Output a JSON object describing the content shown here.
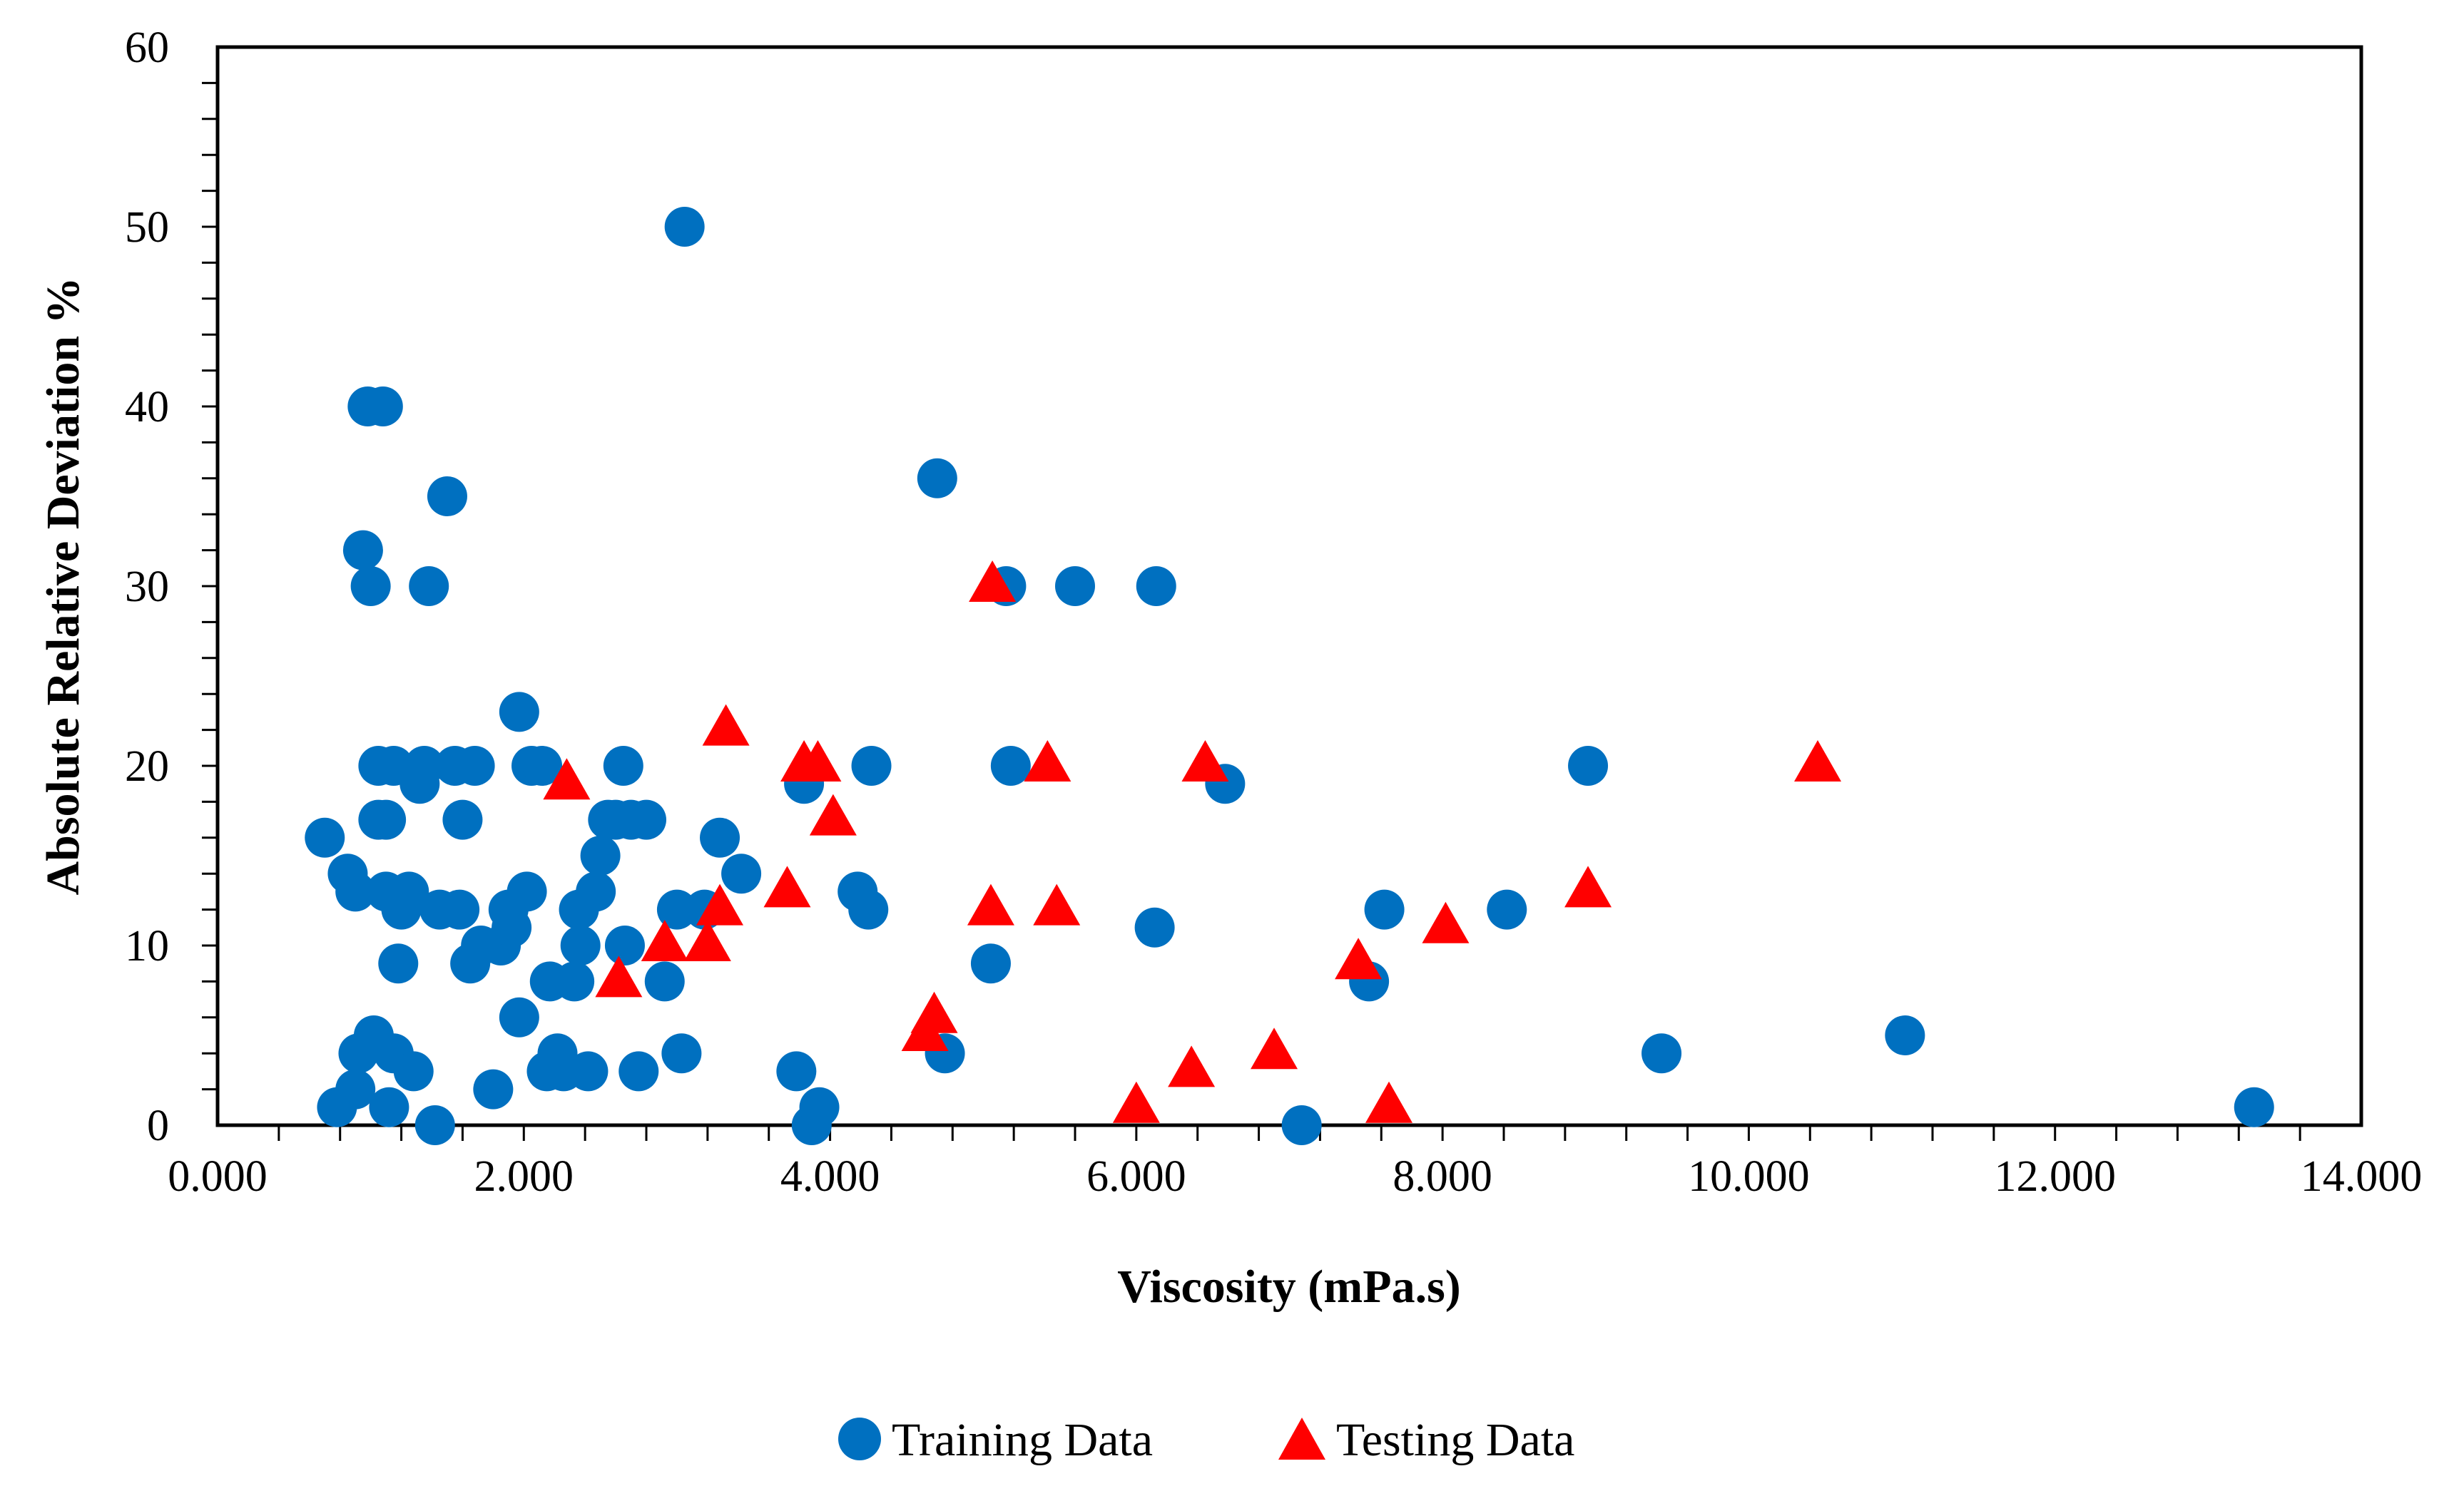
{
  "colors": {
    "training": "#0070C0",
    "testing": "#FF0000",
    "axis": "#000000",
    "background": "#FFFFFF"
  },
  "chart_data": {
    "type": "scatter",
    "title": "",
    "xlabel": "Viscosity (mPa.s)",
    "ylabel": "Absolute Relative Deviation %",
    "xlim": [
      0,
      14
    ],
    "ylim": [
      0,
      60
    ],
    "x_ticks": [
      0,
      2,
      4,
      6,
      8,
      10,
      12,
      14
    ],
    "x_tick_labels": [
      "0.000",
      "2.000",
      "4.000",
      "6.000",
      "8.000",
      "10.000",
      "12.000",
      "14.000"
    ],
    "y_ticks": [
      0,
      10,
      20,
      30,
      40,
      50,
      60
    ],
    "y_tick_labels": [
      "0",
      "10",
      "20",
      "30",
      "40",
      "50",
      "60"
    ],
    "x_minor_step": 0.4,
    "y_minor_step": 2,
    "grid": false,
    "legend_position": "bottom-center",
    "series": [
      {
        "name": "Training Data",
        "marker": "circle",
        "points": [
          [
            0.7,
            16
          ],
          [
            0.78,
            1
          ],
          [
            0.85,
            14
          ],
          [
            0.9,
            2
          ],
          [
            0.9,
            13
          ],
          [
            0.92,
            4
          ],
          [
            0.95,
            32
          ],
          [
            0.98,
            40
          ],
          [
            1.0,
            30
          ],
          [
            1.02,
            5
          ],
          [
            1.05,
            20
          ],
          [
            1.05,
            17
          ],
          [
            1.08,
            40
          ],
          [
            1.1,
            17
          ],
          [
            1.1,
            13
          ],
          [
            1.12,
            1
          ],
          [
            1.15,
            20
          ],
          [
            1.15,
            4
          ],
          [
            1.18,
            9
          ],
          [
            1.2,
            12
          ],
          [
            1.25,
            13
          ],
          [
            1.28,
            3
          ],
          [
            1.32,
            19
          ],
          [
            1.35,
            20
          ],
          [
            1.38,
            30
          ],
          [
            1.42,
            0
          ],
          [
            1.45,
            12
          ],
          [
            1.5,
            35
          ],
          [
            1.55,
            20
          ],
          [
            1.58,
            12
          ],
          [
            1.6,
            17
          ],
          [
            1.65,
            9
          ],
          [
            1.68,
            20
          ],
          [
            1.72,
            10
          ],
          [
            1.8,
            2
          ],
          [
            1.85,
            10
          ],
          [
            1.9,
            12
          ],
          [
            1.92,
            11
          ],
          [
            1.97,
            6
          ],
          [
            1.97,
            23
          ],
          [
            2.02,
            13
          ],
          [
            2.05,
            20
          ],
          [
            2.12,
            20
          ],
          [
            2.15,
            3
          ],
          [
            2.17,
            8
          ],
          [
            2.22,
            4
          ],
          [
            2.26,
            3
          ],
          [
            2.33,
            8
          ],
          [
            2.36,
            12
          ],
          [
            2.37,
            10
          ],
          [
            2.42,
            3
          ],
          [
            2.47,
            13
          ],
          [
            2.5,
            15
          ],
          [
            2.55,
            17
          ],
          [
            2.6,
            17
          ],
          [
            2.65,
            20
          ],
          [
            2.66,
            10
          ],
          [
            2.7,
            17
          ],
          [
            2.75,
            3
          ],
          [
            2.8,
            17
          ],
          [
            2.92,
            8
          ],
          [
            3.0,
            12
          ],
          [
            3.03,
            4
          ],
          [
            3.05,
            50
          ],
          [
            3.18,
            12
          ],
          [
            3.28,
            16
          ],
          [
            3.42,
            14
          ],
          [
            3.78,
            3
          ],
          [
            3.83,
            19
          ],
          [
            3.88,
            0
          ],
          [
            3.93,
            1
          ],
          [
            4.18,
            13
          ],
          [
            4.25,
            12
          ],
          [
            4.27,
            20
          ],
          [
            4.7,
            36
          ],
          [
            4.75,
            4
          ],
          [
            5.05,
            9
          ],
          [
            5.15,
            30
          ],
          [
            5.18,
            20
          ],
          [
            5.6,
            30
          ],
          [
            6.12,
            11
          ],
          [
            6.13,
            30
          ],
          [
            6.58,
            19
          ],
          [
            7.08,
            0
          ],
          [
            7.52,
            8
          ],
          [
            7.62,
            12
          ],
          [
            8.42,
            12
          ],
          [
            8.95,
            20
          ],
          [
            9.43,
            4
          ],
          [
            11.02,
            5
          ],
          [
            13.3,
            1
          ]
        ]
      },
      {
        "name": "Testing Data",
        "marker": "triangle",
        "points": [
          [
            2.28,
            19
          ],
          [
            2.62,
            8
          ],
          [
            2.92,
            10
          ],
          [
            3.2,
            10
          ],
          [
            3.28,
            12
          ],
          [
            3.32,
            22
          ],
          [
            3.72,
            13
          ],
          [
            3.83,
            20
          ],
          [
            3.92,
            20
          ],
          [
            4.02,
            17
          ],
          [
            4.62,
            5
          ],
          [
            4.68,
            6
          ],
          [
            5.06,
            30
          ],
          [
            5.05,
            12
          ],
          [
            5.42,
            20
          ],
          [
            5.48,
            12
          ],
          [
            6.0,
            1
          ],
          [
            6.36,
            3
          ],
          [
            6.45,
            20
          ],
          [
            6.9,
            4
          ],
          [
            7.45,
            9
          ],
          [
            7.65,
            1
          ],
          [
            8.02,
            11
          ],
          [
            8.95,
            13
          ],
          [
            10.45,
            20
          ]
        ]
      }
    ]
  }
}
